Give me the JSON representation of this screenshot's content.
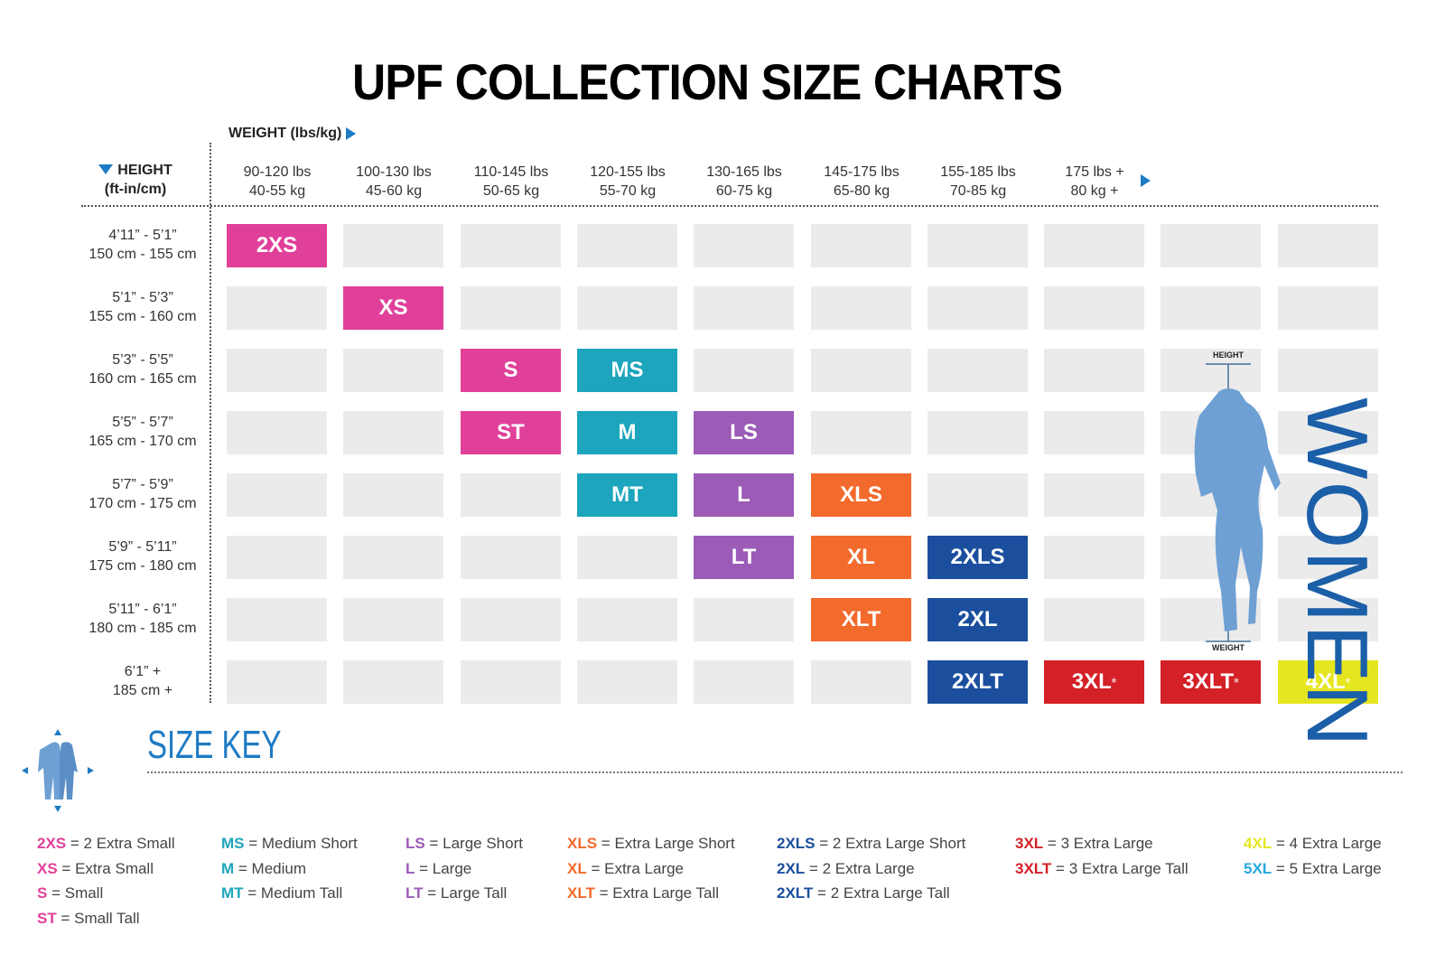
{
  "title": "UPF COLLECTION SIZE CHARTS",
  "weight_axis_label": "WEIGHT (lbs/kg)",
  "height_axis_label": [
    "HEIGHT",
    "(ft-in/cm)"
  ],
  "weight_columns": [
    [
      "90-120 lbs",
      "40-55 kg"
    ],
    [
      "100-130 lbs",
      "45-60 kg"
    ],
    [
      "110-145 lbs",
      "50-65 kg"
    ],
    [
      "120-155 lbs",
      "55-70 kg"
    ],
    [
      "130-165 lbs",
      "60-75 kg"
    ],
    [
      "145-175 lbs",
      "65-80 kg"
    ],
    [
      "155-185 lbs",
      "70-85 kg"
    ],
    [
      "175 lbs +",
      "80 kg +"
    ]
  ],
  "height_rows": [
    [
      "4’11” - 5’1”",
      "150 cm - 155 cm"
    ],
    [
      "5’1” - 5’3”",
      "155 cm - 160 cm"
    ],
    [
      "5’3” - 5’5”",
      "160 cm - 165 cm"
    ],
    [
      "5’5” - 5’7”",
      "165 cm - 170 cm"
    ],
    [
      "5’7” - 5’9”",
      "170 cm - 175 cm"
    ],
    [
      "5’9” - 5’11”",
      "175 cm - 180 cm"
    ],
    [
      "5’11” - 6’1”",
      "180 cm - 185 cm"
    ],
    [
      "6’1” +",
      "185 cm +"
    ]
  ],
  "colors": {
    "pink": "#e0409a",
    "teal": "#1da5bd",
    "purple": "#9b5bb7",
    "orange": "#f26a2c",
    "navy": "#1b4f9e",
    "red": "#d42027",
    "yellow": "#e6e620",
    "lightblue": "#29a8e0",
    "grey": "#ebebeb",
    "accent": "#1e7bc4",
    "figure": "#6fa0d4"
  },
  "cells": [
    {
      "row": 0,
      "col": 0,
      "size": "2XS",
      "color": "pink"
    },
    {
      "row": 1,
      "col": 1,
      "size": "XS",
      "color": "pink"
    },
    {
      "row": 2,
      "col": 2,
      "size": "S",
      "color": "pink"
    },
    {
      "row": 2,
      "col": 3,
      "size": "MS",
      "color": "teal"
    },
    {
      "row": 3,
      "col": 2,
      "size": "ST",
      "color": "pink"
    },
    {
      "row": 3,
      "col": 3,
      "size": "M",
      "color": "teal"
    },
    {
      "row": 3,
      "col": 4,
      "size": "LS",
      "color": "purple"
    },
    {
      "row": 4,
      "col": 3,
      "size": "MT",
      "color": "teal"
    },
    {
      "row": 4,
      "col": 4,
      "size": "L",
      "color": "purple"
    },
    {
      "row": 4,
      "col": 5,
      "size": "XLS",
      "color": "orange"
    },
    {
      "row": 5,
      "col": 4,
      "size": "LT",
      "color": "purple"
    },
    {
      "row": 5,
      "col": 5,
      "size": "XL",
      "color": "orange"
    },
    {
      "row": 5,
      "col": 6,
      "size": "2XLS",
      "color": "navy"
    },
    {
      "row": 6,
      "col": 5,
      "size": "XLT",
      "color": "orange"
    },
    {
      "row": 6,
      "col": 6,
      "size": "2XL",
      "color": "navy"
    },
    {
      "row": 7,
      "col": 6,
      "size": "2XLT",
      "color": "navy"
    },
    {
      "row": 7,
      "col": 7,
      "size": "3XL",
      "mark": "*",
      "color": "red"
    },
    {
      "row": 7,
      "col": 8,
      "size": "3XLT",
      "mark": "*",
      "color": "red"
    },
    {
      "row": 7,
      "col": 9,
      "size": "4XL",
      "mark": "*",
      "color": "yellow"
    }
  ],
  "figure": {
    "top_label": "HEIGHT",
    "bottom_label": "WEIGHT",
    "side_text": "WOMEN"
  },
  "size_key_title": "SIZE KEY",
  "size_key": [
    [
      {
        "abbr": "2XS",
        "desc": "= 2 Extra Small",
        "color": "pink"
      },
      {
        "abbr": "XS",
        "desc": "= Extra Small",
        "color": "pink"
      },
      {
        "abbr": "S",
        "desc": "= Small",
        "color": "pink"
      },
      {
        "abbr": "ST",
        "desc": "= Small Tall",
        "color": "pink"
      }
    ],
    [
      {
        "abbr": "MS",
        "desc": "= Medium Short",
        "color": "teal"
      },
      {
        "abbr": "M",
        "desc": "= Medium",
        "color": "teal"
      },
      {
        "abbr": "MT",
        "desc": "= Medium Tall",
        "color": "teal"
      }
    ],
    [
      {
        "abbr": "LS",
        "desc": "= Large Short",
        "color": "purple"
      },
      {
        "abbr": "L",
        "desc": "= Large",
        "color": "purple"
      },
      {
        "abbr": "LT",
        "desc": "= Large Tall",
        "color": "purple"
      }
    ],
    [
      {
        "abbr": "XLS",
        "desc": "= Extra Large Short",
        "color": "orange"
      },
      {
        "abbr": "XL",
        "desc": "= Extra Large",
        "color": "orange"
      },
      {
        "abbr": "XLT",
        "desc": "= Extra Large Tall",
        "color": "orange"
      }
    ],
    [
      {
        "abbr": "2XLS",
        "desc": "= 2 Extra Large Short",
        "color": "navy"
      },
      {
        "abbr": "2XL",
        "desc": "= 2 Extra Large",
        "color": "navy"
      },
      {
        "abbr": "2XLT",
        "desc": "= 2 Extra Large Tall",
        "color": "navy"
      }
    ],
    [
      {
        "abbr": "3XL",
        "desc": "= 3 Extra Large",
        "color": "red"
      },
      {
        "abbr": "3XLT",
        "desc": "= 3 Extra Large Tall",
        "color": "red"
      }
    ],
    [
      {
        "abbr": "4XL",
        "desc": "= 4 Extra Large",
        "color": "yellow"
      },
      {
        "abbr": "5XL",
        "desc": "= 5 Extra Large",
        "color": "lightblue"
      }
    ]
  ]
}
